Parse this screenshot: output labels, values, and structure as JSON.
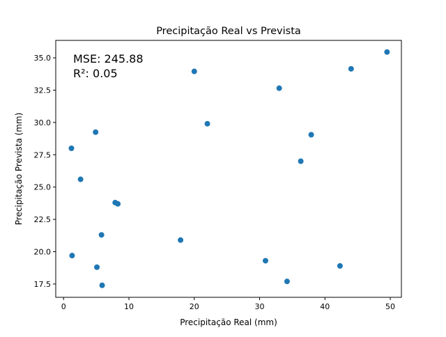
{
  "chart_data": {
    "type": "scatter",
    "title": "Precipitação Real vs Prevista",
    "xlabel": "Precipitação Real (mm)",
    "ylabel": "Precipitação Prevista (mm)",
    "xlim": [
      -1.2,
      51.7
    ],
    "ylim": [
      16.47,
      36.35
    ],
    "xticks": [
      0,
      10,
      20,
      30,
      40,
      50
    ],
    "xtick_labels": [
      "0",
      "10",
      "20",
      "30",
      "40",
      "50"
    ],
    "yticks": [
      17.5,
      20.0,
      22.5,
      25.0,
      27.5,
      30.0,
      32.5,
      35.0
    ],
    "ytick_labels": [
      "17.5",
      "20.0",
      "22.5",
      "25.0",
      "27.5",
      "30.0",
      "32.5",
      "35.0"
    ],
    "grid": false,
    "legend": "none",
    "marker_color": "#1f77b4",
    "points": [
      {
        "x": 49.5,
        "y": 35.45
      },
      {
        "x": 44.0,
        "y": 34.15
      },
      {
        "x": 20.0,
        "y": 33.95
      },
      {
        "x": 33.0,
        "y": 32.65
      },
      {
        "x": 22.0,
        "y": 29.9
      },
      {
        "x": 4.9,
        "y": 29.25
      },
      {
        "x": 37.9,
        "y": 29.05
      },
      {
        "x": 1.2,
        "y": 28.0
      },
      {
        "x": 36.3,
        "y": 27.0
      },
      {
        "x": 2.6,
        "y": 25.6
      },
      {
        "x": 7.9,
        "y": 23.8
      },
      {
        "x": 8.3,
        "y": 23.7
      },
      {
        "x": 5.8,
        "y": 21.3
      },
      {
        "x": 17.9,
        "y": 20.9
      },
      {
        "x": 1.3,
        "y": 19.7
      },
      {
        "x": 30.9,
        "y": 19.3
      },
      {
        "x": 42.3,
        "y": 18.9
      },
      {
        "x": 5.1,
        "y": 18.8
      },
      {
        "x": 34.2,
        "y": 17.7
      },
      {
        "x": 5.9,
        "y": 17.4
      }
    ],
    "annotations": {
      "mse": "MSE: 245.88",
      "r2": "R²: 0.05"
    }
  }
}
